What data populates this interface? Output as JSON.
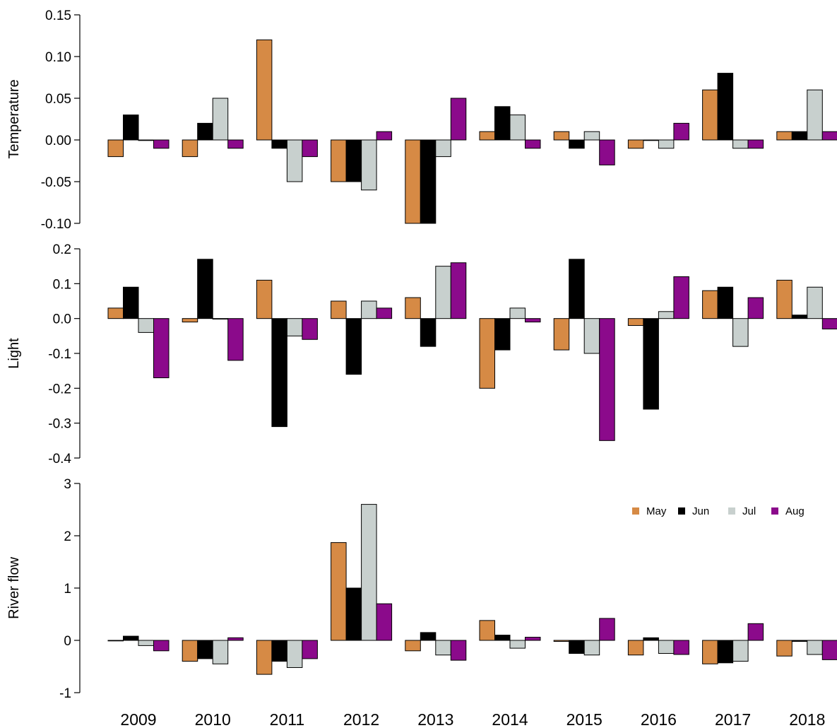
{
  "chart_data": [
    {
      "type": "bar",
      "ylabel": "Temperature",
      "categories": [
        "2009",
        "2010",
        "2011",
        "2012",
        "2013",
        "2014",
        "2015",
        "2016",
        "2017",
        "2018"
      ],
      "ylim": [
        -0.1,
        0.15
      ],
      "yticks": [
        "-0.10",
        "-0.05",
        "0.00",
        "0.05",
        "0.10",
        "0.15"
      ],
      "series": [
        {
          "name": "May",
          "color": "#D68A45",
          "values": [
            -0.02,
            -0.02,
            0.12,
            -0.05,
            -0.1,
            0.01,
            0.01,
            -0.01,
            0.06,
            0.01
          ]
        },
        {
          "name": "Jun",
          "color": "#000000",
          "values": [
            0.03,
            0.02,
            -0.01,
            -0.05,
            -0.1,
            0.04,
            -0.01,
            0.0,
            0.08,
            0.01
          ]
        },
        {
          "name": "Jul",
          "color": "#C8D0CE",
          "values": [
            0.0,
            0.05,
            -0.05,
            -0.06,
            -0.02,
            0.03,
            0.01,
            -0.01,
            -0.01,
            0.06
          ]
        },
        {
          "name": "Aug",
          "color": "#8B0A8B",
          "values": [
            -0.01,
            -0.01,
            -0.02,
            0.01,
            0.05,
            -0.01,
            -0.03,
            0.02,
            -0.01,
            0.01
          ]
        }
      ]
    },
    {
      "type": "bar",
      "ylabel": "Light",
      "categories": [
        "2009",
        "2010",
        "2011",
        "2012",
        "2013",
        "2014",
        "2015",
        "2016",
        "2017",
        "2018"
      ],
      "ylim": [
        -0.4,
        0.2
      ],
      "yticks": [
        "-0.4",
        "-0.3",
        "-0.2",
        "-0.1",
        "0.0",
        "0.1",
        "0.2"
      ],
      "series": [
        {
          "name": "May",
          "color": "#D68A45",
          "values": [
            0.03,
            -0.01,
            0.11,
            0.05,
            0.06,
            -0.2,
            -0.09,
            -0.02,
            0.08,
            0.11
          ]
        },
        {
          "name": "Jun",
          "color": "#000000",
          "values": [
            0.09,
            0.17,
            -0.31,
            -0.16,
            -0.08,
            -0.09,
            0.17,
            -0.26,
            0.09,
            0.01
          ]
        },
        {
          "name": "Jul",
          "color": "#C8D0CE",
          "values": [
            -0.04,
            0.0,
            -0.05,
            0.05,
            0.15,
            0.03,
            -0.1,
            0.02,
            -0.08,
            0.09
          ]
        },
        {
          "name": "Aug",
          "color": "#8B0A8B",
          "values": [
            -0.17,
            -0.12,
            -0.06,
            0.03,
            0.16,
            -0.01,
            -0.35,
            0.12,
            0.06,
            -0.03
          ]
        }
      ]
    },
    {
      "type": "bar",
      "ylabel": "River flow",
      "categories": [
        "2009",
        "2010",
        "2011",
        "2012",
        "2013",
        "2014",
        "2015",
        "2016",
        "2017",
        "2018"
      ],
      "ylim": [
        -1,
        3
      ],
      "yticks": [
        "-1",
        "0",
        "1",
        "2",
        "3"
      ],
      "legend": {
        "position": "top-right",
        "entries": [
          "May",
          "Jun",
          "Jul",
          "Aug"
        ]
      },
      "series": [
        {
          "name": "May",
          "color": "#D68A45",
          "values": [
            -0.01,
            -0.4,
            -0.65,
            1.87,
            -0.2,
            0.38,
            -0.02,
            -0.28,
            -0.45,
            -0.3
          ]
        },
        {
          "name": "Jun",
          "color": "#000000",
          "values": [
            0.08,
            -0.35,
            -0.4,
            1.0,
            0.15,
            0.1,
            -0.25,
            0.05,
            -0.43,
            -0.02
          ]
        },
        {
          "name": "Jul",
          "color": "#C8D0CE",
          "values": [
            -0.1,
            -0.45,
            -0.52,
            2.6,
            -0.28,
            -0.15,
            -0.28,
            -0.25,
            -0.4,
            -0.27
          ]
        },
        {
          "name": "Aug",
          "color": "#8B0A8B",
          "values": [
            -0.2,
            0.05,
            -0.35,
            0.7,
            -0.38,
            0.06,
            0.42,
            -0.27,
            0.32,
            -0.37
          ]
        }
      ]
    }
  ]
}
